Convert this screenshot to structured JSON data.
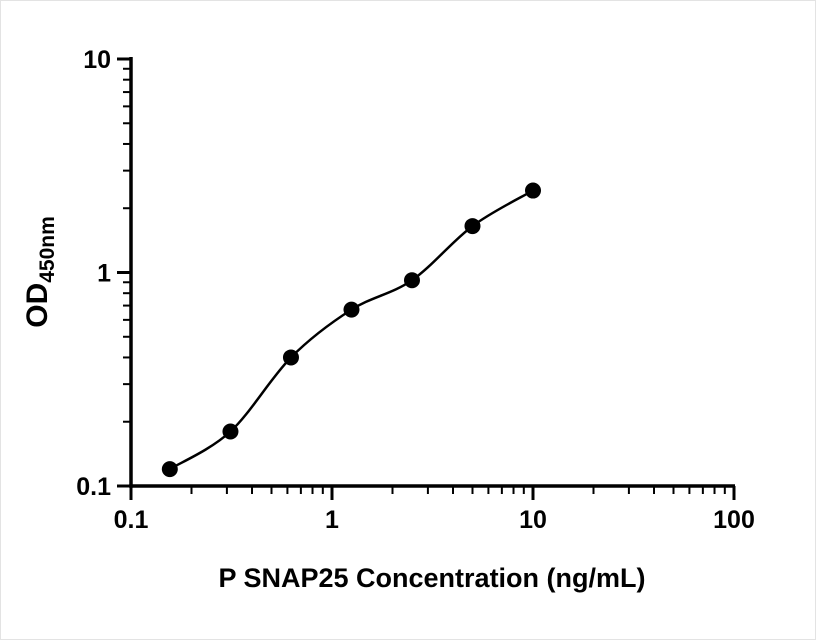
{
  "chart_data": {
    "type": "scatter",
    "title": "",
    "xlabel": "P SNAP25 Concentration (ng/mL)",
    "ylabel_main": "OD",
    "ylabel_sub": "450nm",
    "xscale": "log",
    "yscale": "log",
    "xlim": [
      0.1,
      100
    ],
    "ylim": [
      0.1,
      10
    ],
    "grid": "off",
    "legend": "none",
    "curve_style": "smooth trend line through points",
    "point_color": "#000000",
    "line_color": "#000000",
    "x": [
      0.156,
      0.3125,
      0.625,
      1.25,
      2.5,
      5,
      10
    ],
    "y": [
      0.12,
      0.18,
      0.4,
      0.67,
      0.92,
      1.65,
      2.42
    ],
    "x_ticks": [
      0.1,
      1,
      10,
      100
    ],
    "x_tick_labels": [
      "0.1",
      "1",
      "10",
      "100"
    ],
    "y_ticks": [
      10,
      1,
      0.1
    ],
    "y_tick_labels": [
      "10",
      "1",
      "0.1"
    ]
  }
}
